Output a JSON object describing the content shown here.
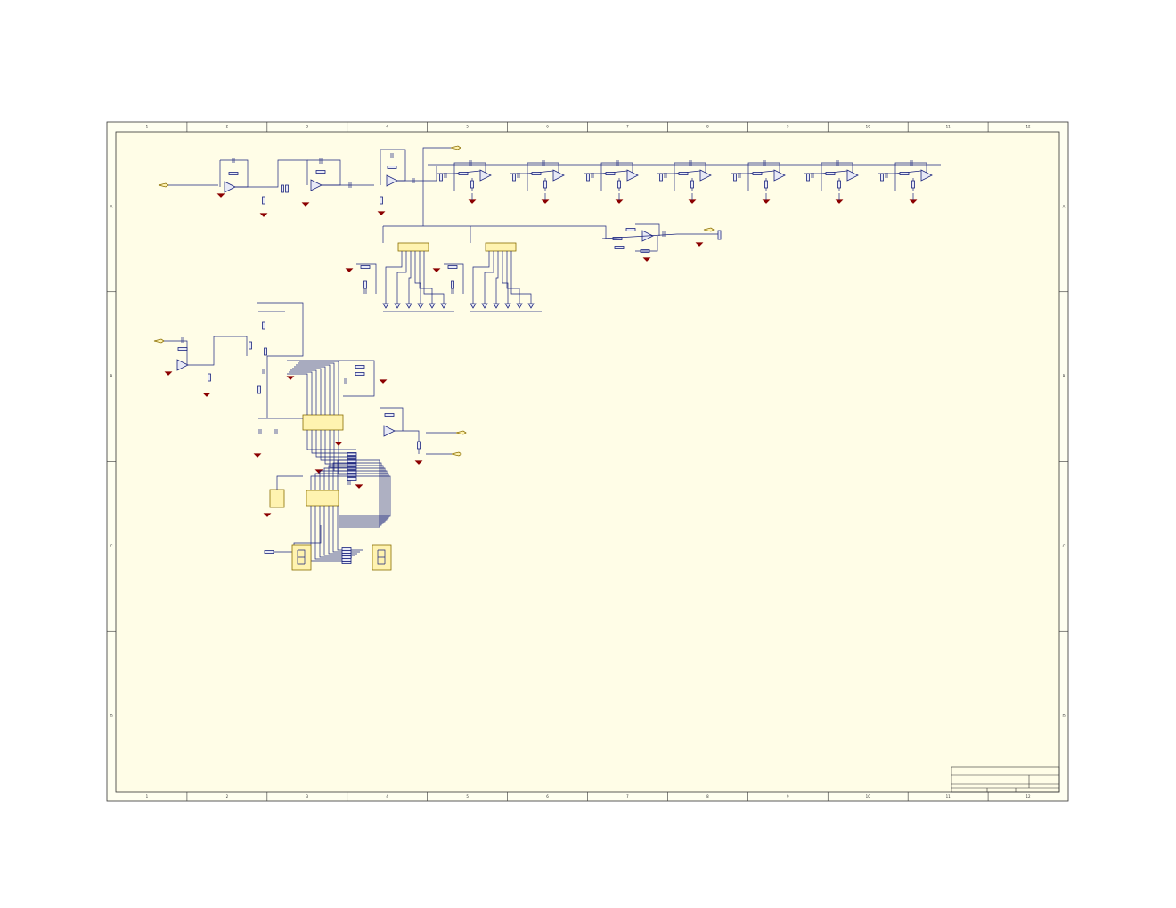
{
  "border": {
    "columns": [
      "1",
      "2",
      "3",
      "4",
      "5",
      "6",
      "7",
      "8",
      "9",
      "10",
      "11",
      "12"
    ],
    "rows": [
      "A",
      "B",
      "C",
      "D"
    ]
  }
}
